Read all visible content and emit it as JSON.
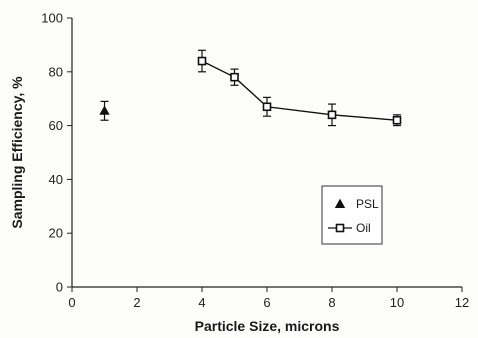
{
  "chart_data": {
    "type": "scatter",
    "title": "",
    "xlabel": "Particle Size, microns",
    "ylabel": "Sampling Efficiency, %",
    "xlim": [
      0,
      12
    ],
    "ylim": [
      0,
      100
    ],
    "x_ticks": [
      0,
      2,
      4,
      6,
      8,
      10,
      12
    ],
    "y_ticks": [
      0,
      20,
      40,
      60,
      80,
      100
    ],
    "grid": false,
    "legend_position": "right",
    "series": [
      {
        "name": "PSL",
        "marker": "triangle",
        "line": false,
        "color": "#111111",
        "points": [
          {
            "x": 1,
            "y": 65.5,
            "err": 3.5
          }
        ]
      },
      {
        "name": "Oil",
        "marker": "square-open",
        "line": true,
        "color": "#111111",
        "points": [
          {
            "x": 4,
            "y": 84,
            "err": 4
          },
          {
            "x": 5,
            "y": 78,
            "err": 3
          },
          {
            "x": 6,
            "y": 67,
            "err": 3.5
          },
          {
            "x": 8,
            "y": 64,
            "err": 4
          },
          {
            "x": 10,
            "y": 62,
            "err": 2
          }
        ]
      }
    ]
  }
}
